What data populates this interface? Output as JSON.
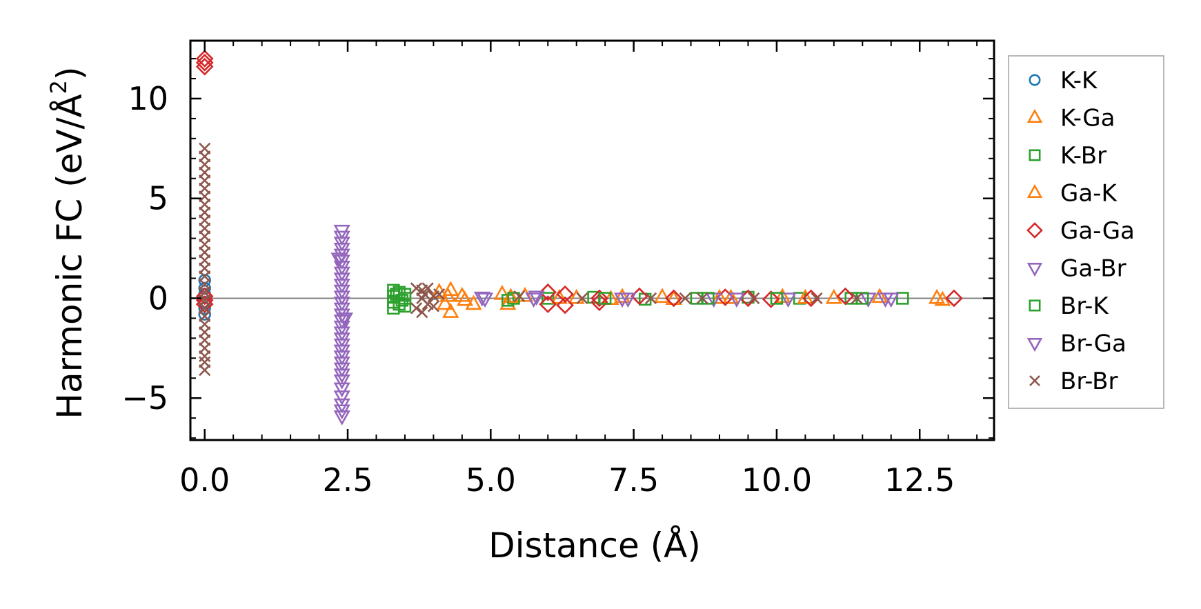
{
  "chart_data": {
    "type": "scatter",
    "title": "",
    "xlabel": "Distance (Å)",
    "ylabel": "Harmonic FC (eV/Å²)",
    "ylabel_main": "Harmonic FC (eV/Å",
    "ylabel_sup": "2",
    "ylabel_tail": ")",
    "xlim": [
      -0.25,
      13.8
    ],
    "ylim": [
      -7.1,
      12.9
    ],
    "xticks": [
      0.0,
      2.5,
      5.0,
      7.5,
      10.0,
      12.5
    ],
    "xtick_labels": [
      "0.0",
      "2.5",
      "5.0",
      "7.5",
      "10.0",
      "12.5"
    ],
    "yticks": [
      -5,
      0,
      5,
      10
    ],
    "ytick_labels": [
      "−5",
      "0",
      "5",
      "10"
    ],
    "x_minor_step": 0.5,
    "y_minor_step": 1,
    "zero_line": true,
    "grid": false,
    "legend_position": "outside-right",
    "series": [
      {
        "name": "K-K",
        "marker": "circle",
        "color": "#1f77b4",
        "points": [
          [
            0,
            0.9
          ],
          [
            0,
            0.5
          ],
          [
            0,
            0.2
          ],
          [
            0,
            -0.2
          ],
          [
            0,
            -0.5
          ],
          [
            0,
            -0.8
          ]
        ]
      },
      {
        "name": "K-Ga",
        "marker": "triangle-up",
        "color": "#ff7f0e",
        "points": [
          [
            4.1,
            0.3
          ],
          [
            4.2,
            -0.3
          ],
          [
            4.3,
            0.4
          ],
          [
            4.3,
            -0.7
          ],
          [
            4.5,
            0.1
          ],
          [
            4.7,
            -0.3
          ],
          [
            5.2,
            0.2
          ],
          [
            5.3,
            -0.3
          ],
          [
            5.6,
            0.1
          ],
          [
            6.5,
            0.0
          ],
          [
            7.3,
            0.05
          ],
          [
            8.2,
            -0.05
          ],
          [
            9.0,
            0.0
          ],
          [
            10.1,
            0.05
          ],
          [
            11.0,
            0.0
          ],
          [
            12.8,
            0.0
          ],
          [
            12.9,
            -0.1
          ]
        ]
      },
      {
        "name": "K-Br",
        "marker": "square",
        "color": "#2ca02c",
        "points": [
          [
            3.3,
            0.4
          ],
          [
            3.3,
            0.1
          ],
          [
            3.3,
            -0.2
          ],
          [
            3.3,
            -0.5
          ],
          [
            3.4,
            0.3
          ],
          [
            3.4,
            -0.3
          ],
          [
            3.5,
            0.2
          ],
          [
            3.5,
            -0.4
          ],
          [
            3.5,
            0.0
          ],
          [
            5.3,
            -0.1
          ],
          [
            6.0,
            0.0
          ],
          [
            6.8,
            0.05
          ],
          [
            7.7,
            -0.05
          ],
          [
            8.6,
            0.0
          ],
          [
            9.5,
            0.05
          ],
          [
            10.4,
            0.0
          ],
          [
            11.3,
            0.0
          ],
          [
            12.2,
            0.0
          ]
        ]
      },
      {
        "name": "Ga-K",
        "marker": "triangle-up",
        "color": "#ff7f0e",
        "points": [
          [
            4.25,
            0.1
          ],
          [
            4.55,
            -0.1
          ],
          [
            5.35,
            0.05
          ],
          [
            6.2,
            0.0
          ],
          [
            7.1,
            -0.05
          ],
          [
            8.0,
            0.05
          ],
          [
            9.2,
            0.0
          ],
          [
            10.5,
            0.0
          ],
          [
            11.8,
            0.05
          ]
        ]
      },
      {
        "name": "Ga-Ga",
        "marker": "diamond",
        "color": "#d62728",
        "points": [
          [
            0,
            12.0
          ],
          [
            0,
            11.8
          ],
          [
            0,
            11.6
          ],
          [
            0,
            0.1
          ],
          [
            0,
            -0.1
          ],
          [
            0,
            -0.3
          ],
          [
            6.0,
            0.3
          ],
          [
            6.0,
            -0.3
          ],
          [
            6.3,
            0.2
          ],
          [
            6.3,
            -0.35
          ],
          [
            6.9,
            0.0
          ],
          [
            6.9,
            -0.2
          ],
          [
            7.6,
            0.1
          ],
          [
            8.2,
            0.0
          ],
          [
            9.1,
            0.05
          ],
          [
            9.5,
            0.0
          ],
          [
            9.9,
            -0.05
          ],
          [
            10.6,
            0.0
          ],
          [
            11.2,
            0.1
          ],
          [
            13.1,
            0.0
          ]
        ]
      },
      {
        "name": "Ga-Br",
        "marker": "triangle-down",
        "color": "#9467bd",
        "points": [
          [
            2.4,
            3.4
          ],
          [
            2.4,
            3.1
          ],
          [
            2.4,
            2.8
          ],
          [
            2.4,
            2.5
          ],
          [
            2.4,
            2.2
          ],
          [
            2.4,
            1.9
          ],
          [
            2.4,
            1.6
          ],
          [
            2.4,
            1.3
          ],
          [
            2.4,
            1.0
          ],
          [
            2.4,
            0.7
          ],
          [
            2.4,
            0.4
          ],
          [
            2.4,
            0.1
          ],
          [
            2.4,
            -0.2
          ],
          [
            2.4,
            -0.5
          ],
          [
            2.4,
            -0.8
          ],
          [
            2.4,
            -1.1
          ],
          [
            2.4,
            -1.4
          ],
          [
            2.4,
            -1.7
          ],
          [
            2.4,
            -2.0
          ],
          [
            2.4,
            -2.3
          ],
          [
            2.4,
            -2.6
          ],
          [
            2.4,
            -2.9
          ],
          [
            2.4,
            -3.2
          ],
          [
            2.4,
            -3.5
          ],
          [
            2.4,
            -3.8
          ],
          [
            2.4,
            -4.1
          ],
          [
            2.4,
            -4.5
          ],
          [
            2.4,
            -4.9
          ],
          [
            2.4,
            -5.3
          ],
          [
            2.4,
            -5.6
          ],
          [
            2.4,
            -5.9
          ],
          [
            4.9,
            0.0
          ],
          [
            5.8,
            0.1
          ],
          [
            7.3,
            0.0
          ],
          [
            8.9,
            0.0
          ],
          [
            10.2,
            0.0
          ],
          [
            11.6,
            0.0
          ],
          [
            12.0,
            0.0
          ]
        ]
      },
      {
        "name": "Br-K",
        "marker": "square",
        "color": "#2ca02c",
        "points": [
          [
            3.35,
            0.2
          ],
          [
            3.45,
            -0.1
          ],
          [
            5.4,
            0.0
          ],
          [
            7.0,
            0.0
          ],
          [
            8.8,
            0.0
          ],
          [
            10.0,
            0.0
          ],
          [
            11.5,
            0.0
          ]
        ]
      },
      {
        "name": "Br-Ga",
        "marker": "triangle-down",
        "color": "#9467bd",
        "points": [
          [
            2.35,
            2.0
          ],
          [
            2.45,
            -1.0
          ],
          [
            4.85,
            0.05
          ],
          [
            5.75,
            0.0
          ],
          [
            7.4,
            0.0
          ],
          [
            9.3,
            0.0
          ],
          [
            11.9,
            0.0
          ]
        ]
      },
      {
        "name": "Br-Br",
        "marker": "x",
        "color": "#8c564b",
        "points": [
          [
            0,
            7.5
          ],
          [
            0,
            7.1
          ],
          [
            0,
            6.7
          ],
          [
            0,
            6.3
          ],
          [
            0,
            5.9
          ],
          [
            0,
            5.5
          ],
          [
            0,
            5.1
          ],
          [
            0,
            4.7
          ],
          [
            0,
            4.3
          ],
          [
            0,
            3.9
          ],
          [
            0,
            3.5
          ],
          [
            0,
            3.1
          ],
          [
            0,
            2.7
          ],
          [
            0,
            2.3
          ],
          [
            0,
            1.9
          ],
          [
            0,
            1.5
          ],
          [
            0,
            1.1
          ],
          [
            0,
            0.7
          ],
          [
            0,
            0.3
          ],
          [
            0,
            -0.1
          ],
          [
            0,
            -0.5
          ],
          [
            0,
            -0.9
          ],
          [
            0,
            -1.3
          ],
          [
            0,
            -1.7
          ],
          [
            0,
            -2.1
          ],
          [
            0,
            -2.5
          ],
          [
            0,
            -2.9
          ],
          [
            0,
            -3.2
          ],
          [
            0,
            -3.6
          ],
          [
            3.7,
            0.5
          ],
          [
            3.7,
            -0.5
          ],
          [
            3.8,
            0.4
          ],
          [
            3.8,
            0.0
          ],
          [
            3.8,
            -0.7
          ],
          [
            3.85,
            0.2
          ],
          [
            3.9,
            -0.3
          ],
          [
            3.9,
            0.5
          ],
          [
            4.0,
            0.1
          ],
          [
            4.0,
            -0.4
          ],
          [
            4.1,
            0.2
          ],
          [
            5.5,
            0.1
          ],
          [
            6.6,
            0.0
          ],
          [
            7.8,
            0.0
          ],
          [
            8.4,
            0.0
          ],
          [
            8.7,
            0.0
          ],
          [
            9.6,
            0.0
          ],
          [
            10.7,
            0.0
          ],
          [
            11.4,
            0.0
          ]
        ]
      }
    ]
  }
}
